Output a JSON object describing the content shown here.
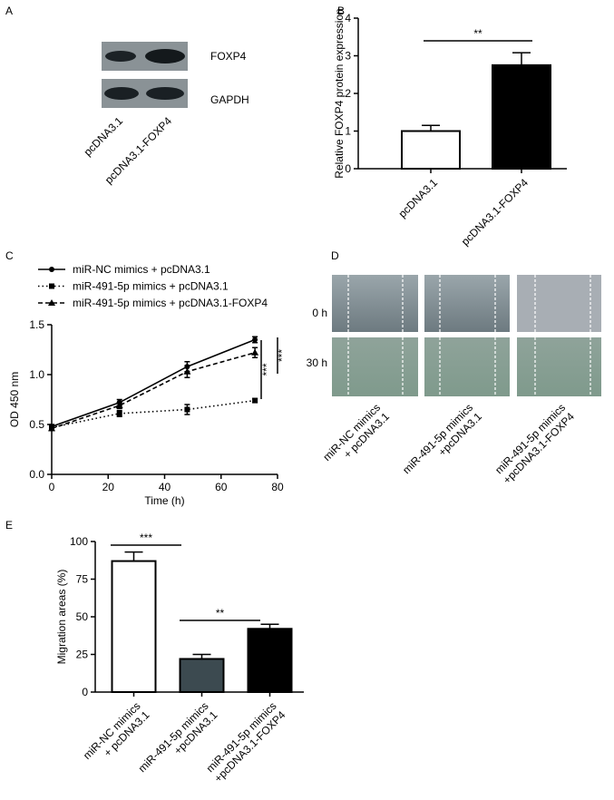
{
  "panel_labels": [
    "A",
    "B",
    "C",
    "D",
    "E"
  ],
  "blot": {
    "bands": [
      "FOXP4",
      "GAPDH"
    ],
    "lanes": [
      "pcDNA3.1",
      "pcDNA3.1-FOXP4"
    ]
  },
  "wound": {
    "rows": [
      "0 h",
      "30 h"
    ],
    "columns": [
      "miR-NC mimics\n+ pcDNA3.1",
      "miR-491-5p mimics\n+pcDNA3.1",
      "miR-491-5p mimics\n+pcDNA3.1-FOXP4"
    ]
  },
  "chart_data": [
    {
      "type": "bar",
      "ylabel": "Relative FOXP4 protein expression",
      "categories": [
        "pcDNA3.1",
        "pcDNA3.1-FOXP4"
      ],
      "values": [
        1.0,
        2.75
      ],
      "errors": [
        0.15,
        0.33
      ],
      "colors": [
        "#ffffff",
        "#000000"
      ],
      "ylim": [
        0,
        4
      ],
      "yticks": [
        0,
        1,
        2,
        3,
        4
      ],
      "annotations": [
        "**"
      ]
    },
    {
      "type": "line",
      "xlabel": "Time (h)",
      "ylabel": "OD 450 nm",
      "x": [
        0,
        24,
        48,
        72
      ],
      "series": [
        {
          "name": "miR-NC mimics + pcDNA3.1",
          "color": "#000000",
          "linestyle": "solid",
          "marker": "circle",
          "values": [
            0.48,
            0.72,
            1.08,
            1.35
          ],
          "errors": [
            0.02,
            0.03,
            0.05,
            0.03
          ]
        },
        {
          "name": "miR-491-5p mimics + pcDNA3.1",
          "color": "#000000",
          "linestyle": "dotted",
          "marker": "square",
          "values": [
            0.47,
            0.61,
            0.65,
            0.74
          ],
          "errors": [
            0.02,
            0.03,
            0.05,
            0.02
          ]
        },
        {
          "name": "miR-491-5p mimics + pcDNA3.1-FOXP4",
          "color": "#000000",
          "linestyle": "dashed",
          "marker": "triangle",
          "values": [
            0.46,
            0.69,
            1.03,
            1.22
          ],
          "errors": [
            0.02,
            0.03,
            0.06,
            0.05
          ]
        }
      ],
      "xlim": [
        0,
        80
      ],
      "xticks": [
        0,
        20,
        40,
        60,
        80
      ],
      "ylim": [
        0,
        1.5
      ],
      "yticks": [
        {
          "value": 0,
          "label": "0.0"
        },
        0.5,
        {
          "value": 1,
          "label": "1.0"
        },
        1.5
      ],
      "annotations": [
        "***",
        "***"
      ]
    },
    {
      "type": "bar",
      "ylabel": "Migration areas (%)",
      "categories": [
        "miR-NC mimics\n+ pcDNA3.1",
        "miR-491-5p mimics\n+pcDNA3.1",
        "miR-491-5p mimics\n+pcDNA3.1-FOXP4"
      ],
      "values": [
        87,
        22,
        42
      ],
      "errors": [
        6,
        3,
        3
      ],
      "colors": [
        "#ffffff",
        "#3c4a50",
        "#000000"
      ],
      "ylim": [
        0,
        100
      ],
      "yticks": [
        0,
        25,
        50,
        75,
        100
      ],
      "annotations": [
        "***",
        "**"
      ]
    }
  ]
}
